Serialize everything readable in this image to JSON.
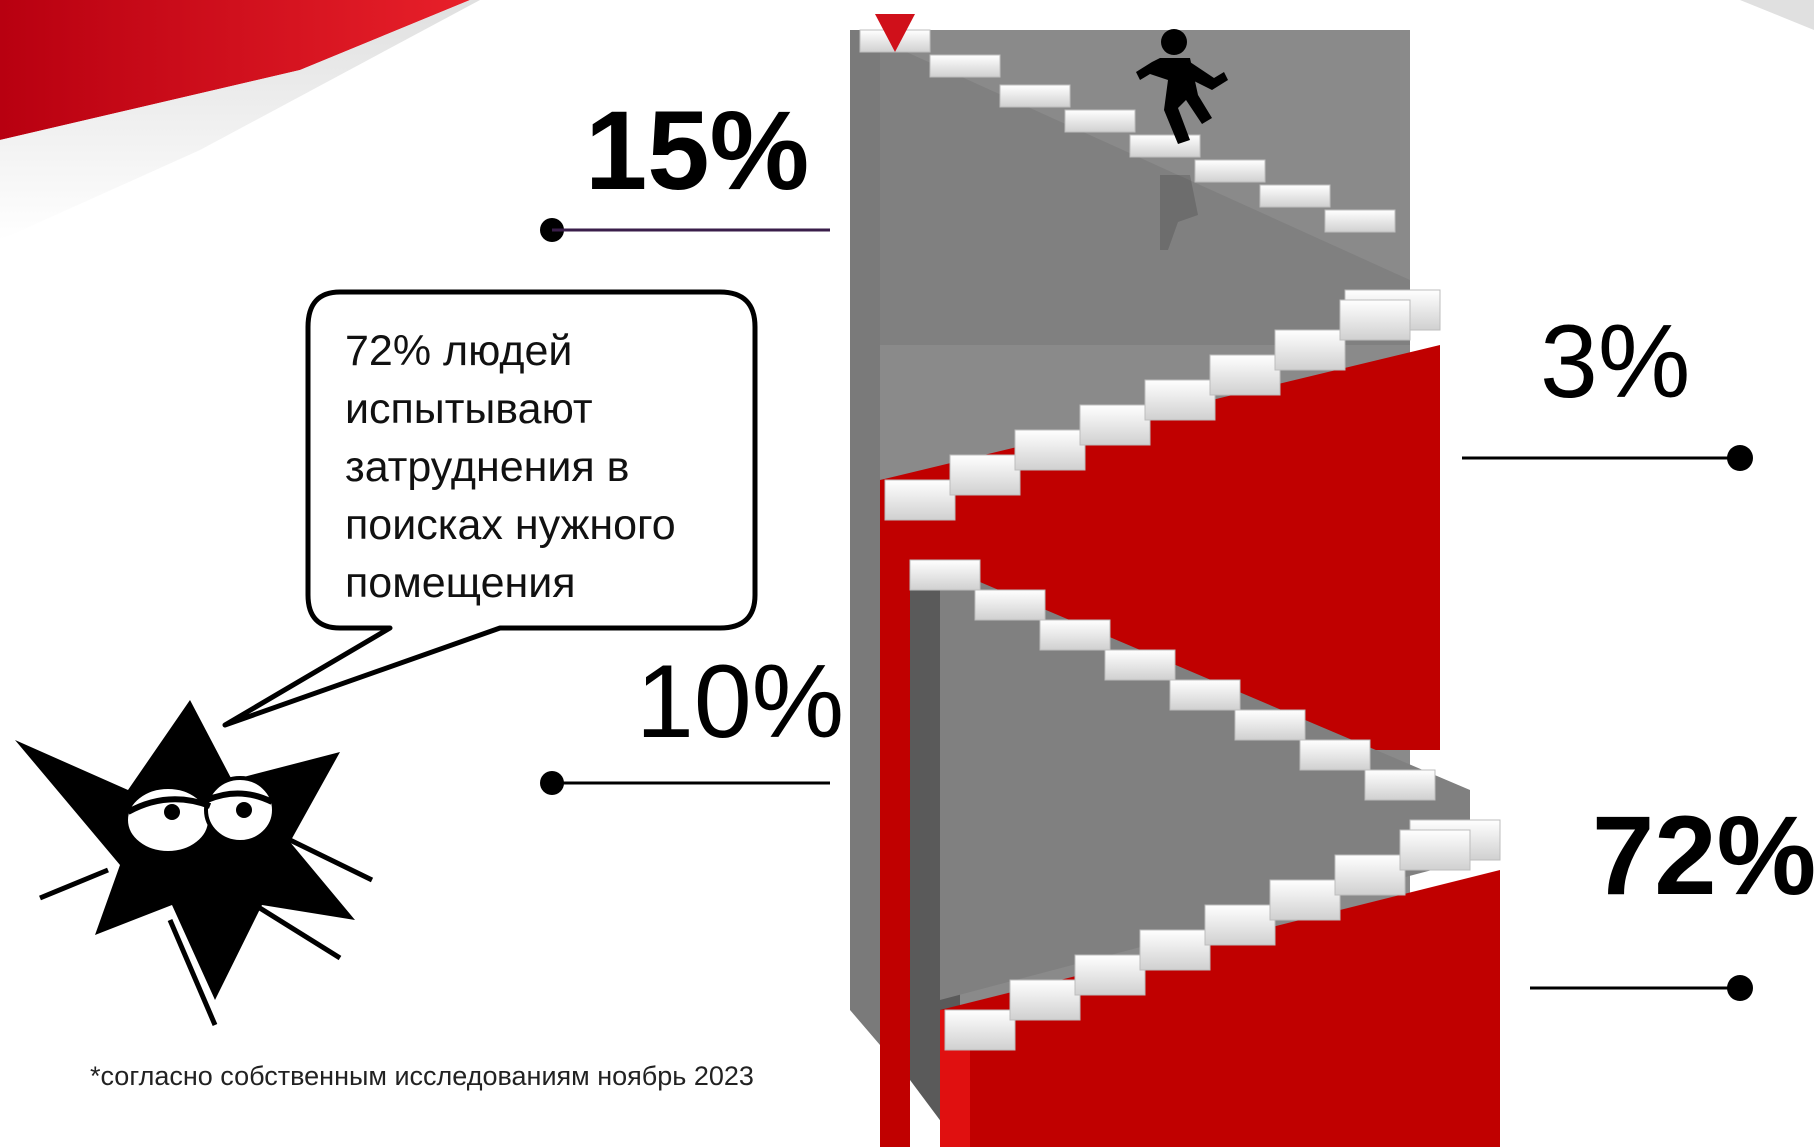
{
  "labels": {
    "top_left": "15%",
    "top_right": "3%",
    "bottom_left": "10%",
    "bottom_right": "72%"
  },
  "speech_bubble": {
    "lines": [
      "72% людей",
      "испытывают",
      "затруднения в",
      "поисках нужного",
      "помещения"
    ]
  },
  "footnote": "*согласно собственным исследованиям ноябрь 2023",
  "colors": {
    "accent_red": "#c00000",
    "stair_gray": "#808080",
    "dark_gray": "#5a5a5a",
    "step_white": "#f4f4f4"
  },
  "icons": [
    "running-man-icon",
    "marker-arrow-icon",
    "mascot-star-icon"
  ]
}
